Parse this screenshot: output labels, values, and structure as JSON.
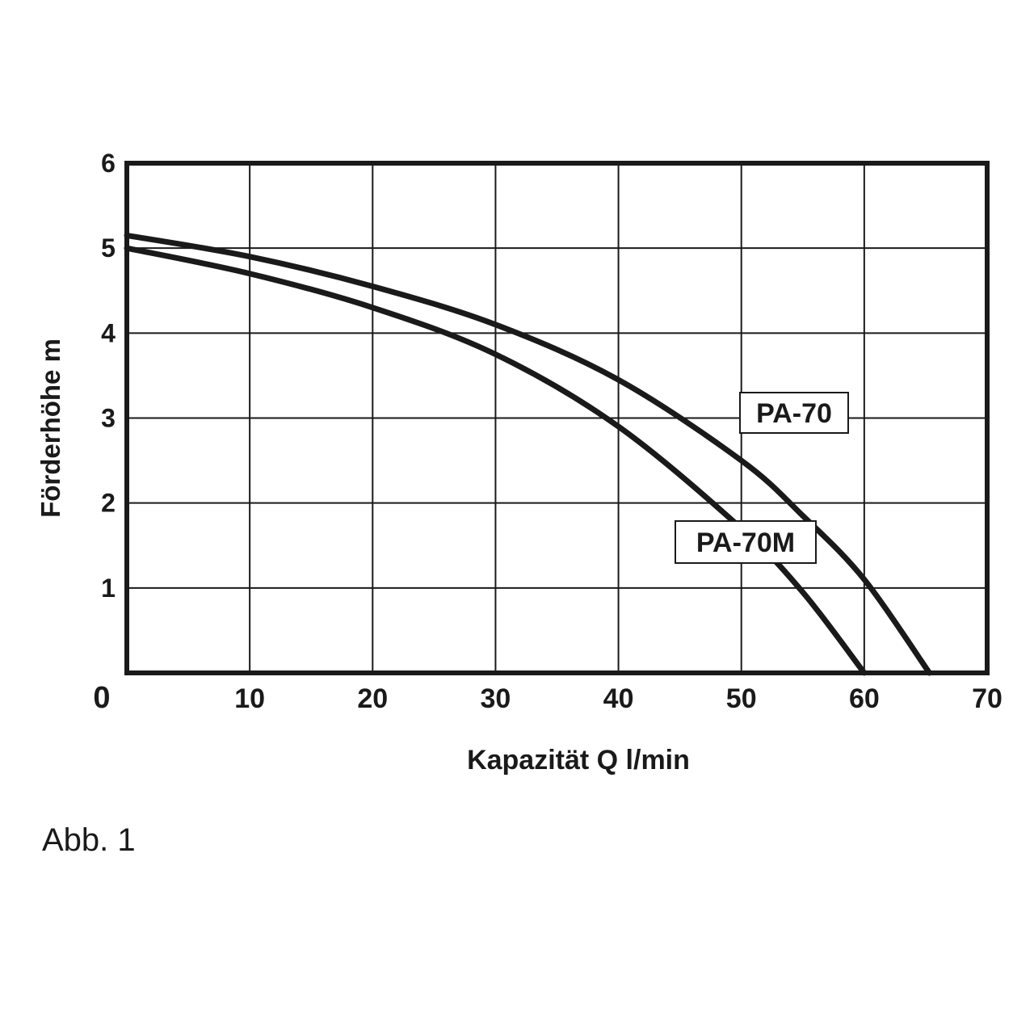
{
  "chart_data": {
    "type": "line",
    "xlabel": "Kapazität Q l/min",
    "ylabel": "Förderhöhe m",
    "xlim": [
      0,
      70
    ],
    "ylim": [
      0,
      6
    ],
    "x_ticks": [
      "0",
      "10",
      "20",
      "30",
      "40",
      "50",
      "60",
      "70"
    ],
    "y_ticks": [
      "1",
      "2",
      "3",
      "4",
      "5",
      "6"
    ],
    "grid": true,
    "series": [
      {
        "name": "PA-70",
        "x": [
          0,
          10,
          20,
          30,
          40,
          50,
          55,
          60,
          65.3
        ],
        "values": [
          5.15,
          4.9,
          4.55,
          4.1,
          3.45,
          2.5,
          1.85,
          1.1,
          0
        ]
      },
      {
        "name": "PA-70M",
        "x": [
          0,
          10,
          20,
          30,
          40,
          50,
          55,
          60
        ],
        "values": [
          5.0,
          4.7,
          4.3,
          3.75,
          2.9,
          1.7,
          0.95,
          0
        ]
      }
    ]
  },
  "caption": "Abb. 1",
  "colors": {
    "line": "#1a1a1a",
    "grid": "#1a1a1a",
    "background": "#ffffff"
  }
}
